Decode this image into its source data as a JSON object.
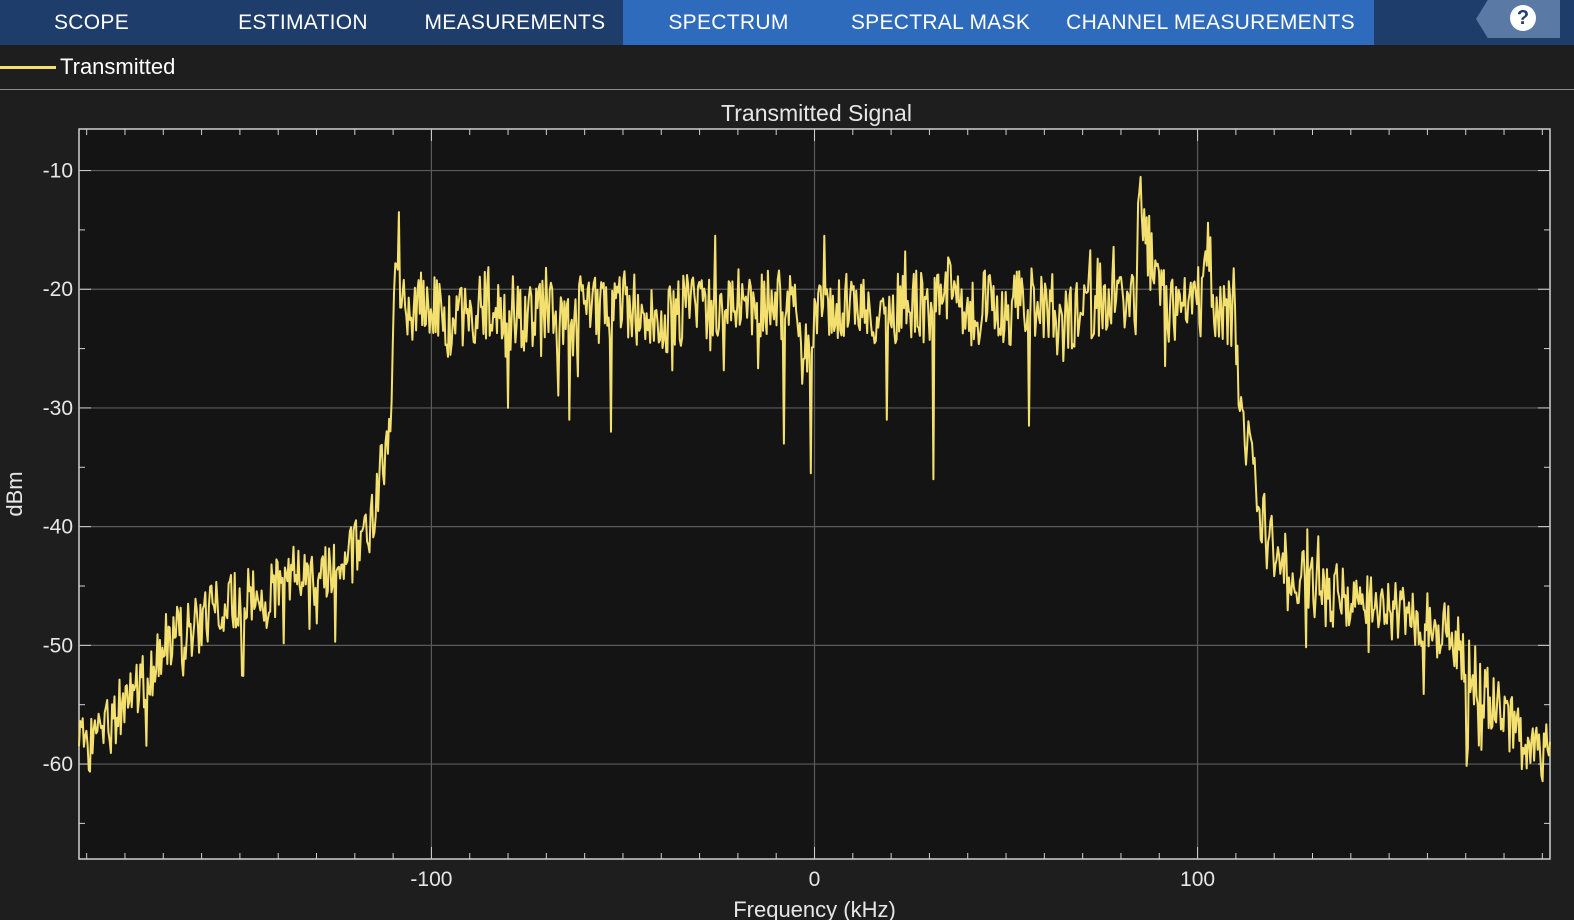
{
  "tabs": [
    {
      "label": "SCOPE",
      "active": false
    },
    {
      "label": "ESTIMATION",
      "active": false
    },
    {
      "label": "MEASUREMENTS",
      "active": false
    },
    {
      "label": "SPECTRUM",
      "active": true
    },
    {
      "label": "SPECTRAL MASK",
      "active": false
    },
    {
      "label": "CHANNEL MEASUREMENTS",
      "active": false
    }
  ],
  "help_label": "?",
  "legend": {
    "label": "Transmitted",
    "color": "#f3e06e"
  },
  "colors": {
    "tabbar": "#1f3d6b",
    "active_tab": "#2f6bbd",
    "plot_bg": "#141414",
    "grid": "#5a5a5a",
    "trace": "#f3e06e"
  },
  "chart_data": {
    "type": "line",
    "title": "Transmitted Signal",
    "xlabel": "Frequency (kHz)",
    "ylabel": "dBm",
    "xlim": [
      -192,
      192
    ],
    "ylim": [
      -68,
      -6.5
    ],
    "xticks": [
      -100,
      0,
      100
    ],
    "yticks": [
      -10,
      -20,
      -30,
      -40,
      -50,
      -60
    ],
    "grid": true,
    "legend_position": "top-left",
    "series": [
      {
        "name": "Transmitted",
        "color": "#f3e06e",
        "x": [
          -192,
          -185,
          -180,
          -175,
          -170,
          -165,
          -160,
          -155,
          -150,
          -145,
          -140,
          -135,
          -130,
          -125,
          -120,
          -116,
          -113,
          -111,
          -110,
          -109,
          -108,
          -105,
          -100,
          -95,
          -90,
          -85,
          -80,
          -75,
          -70,
          -65,
          -60,
          -55,
          -50,
          -45,
          -40,
          -35,
          -30,
          -25,
          -20,
          -15,
          -10,
          -8,
          -5,
          -3,
          0,
          2,
          5,
          10,
          15,
          20,
          25,
          30,
          35,
          40,
          45,
          50,
          55,
          60,
          65,
          70,
          75,
          80,
          84,
          85,
          90,
          95,
          100,
          103,
          105,
          108,
          109,
          110,
          111,
          112,
          115,
          120,
          125,
          130,
          135,
          140,
          145,
          150,
          155,
          160,
          165,
          170,
          175,
          180,
          185,
          192
        ],
        "y": [
          -59,
          -57,
          -55,
          -53,
          -50,
          -49,
          -48,
          -47,
          -46,
          -46,
          -45,
          -44,
          -44,
          -43,
          -42,
          -40,
          -35,
          -32,
          -25,
          -14,
          -22,
          -22,
          -21,
          -23,
          -22,
          -21,
          -23,
          -22,
          -21,
          -24,
          -21,
          -22,
          -21,
          -22,
          -23,
          -22,
          -21,
          -22,
          -21,
          -22,
          -20,
          -22,
          -21,
          -26,
          -22,
          -21,
          -22,
          -21,
          -23,
          -22,
          -21,
          -22,
          -20,
          -22,
          -21,
          -22,
          -21,
          -22,
          -23,
          -21,
          -22,
          -21,
          -22,
          -13,
          -21,
          -22,
          -21,
          -17,
          -22,
          -21,
          -22,
          -24,
          -29,
          -31,
          -37,
          -42,
          -44,
          -45,
          -46,
          -46,
          -46,
          -47,
          -47,
          -48,
          -49,
          -51,
          -54,
          -56,
          -58,
          -59
        ]
      }
    ],
    "dips": [
      {
        "x": -80,
        "y": -30
      },
      {
        "x": -64,
        "y": -31
      },
      {
        "x": -53,
        "y": -32
      },
      {
        "x": -8,
        "y": -33
      },
      {
        "x": -1,
        "y": -35.5
      },
      {
        "x": 19,
        "y": -31
      },
      {
        "x": 31,
        "y": -36
      },
      {
        "x": 56,
        "y": -31.5
      }
    ],
    "peaks": [
      {
        "x": -108.5,
        "y": -13.5
      },
      {
        "x": -26,
        "y": -15.5
      },
      {
        "x": 2.5,
        "y": -15.5
      },
      {
        "x": 84.5,
        "y": -12.7
      },
      {
        "x": 102,
        "y": -16.8
      }
    ]
  }
}
